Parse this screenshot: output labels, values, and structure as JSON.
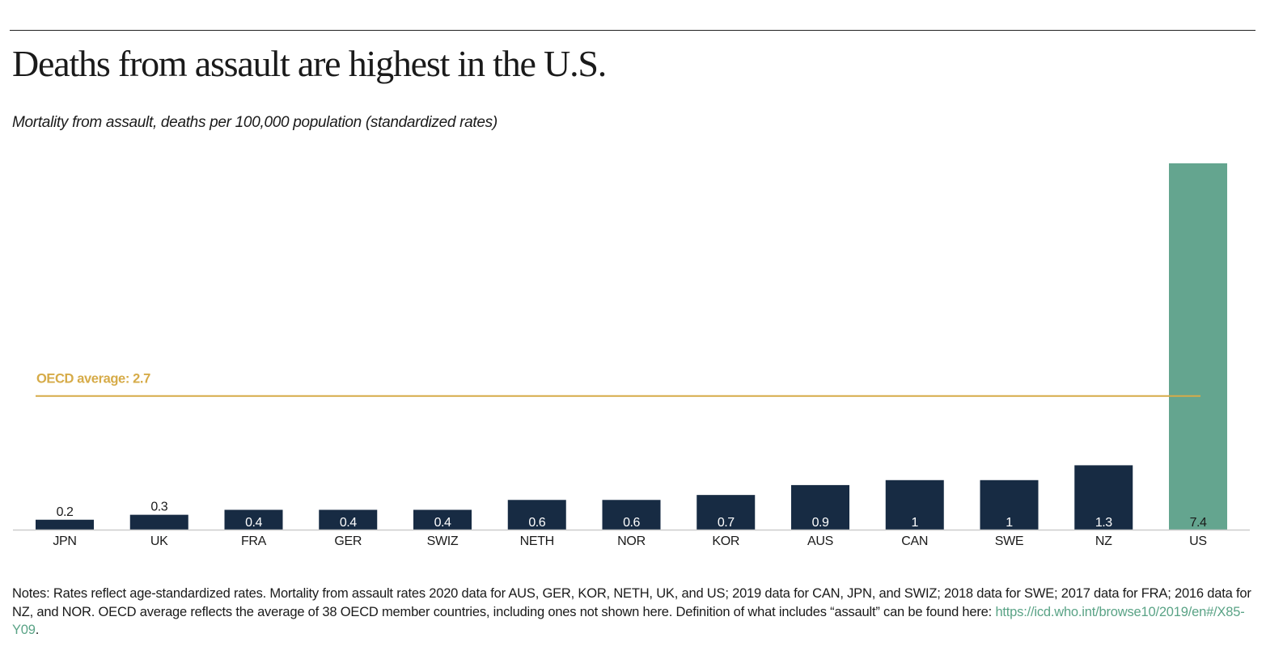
{
  "header": {
    "title": "Deaths from assault are highest in the U.S.",
    "subtitle": "Mortality from assault, deaths per 100,000 population (standardized rates)"
  },
  "notes": {
    "text": "Notes: Rates reflect age-standardized rates. Mortality from assault rates 2020 data for AUS, GER, KOR, NETH, UK, and US; 2019 data for CAN, JPN, and SWIZ; 2018 data for SWE; 2017 data for FRA; 2016 data for NZ, and NOR. OECD average reflects the average of 38 OECD member countries, including ones not shown here. Definition of what includes “assault” can be found here: ",
    "link_text": "https://icd.who.int/browse10/2019/en#/X85-Y09",
    "trailing": "."
  },
  "colors": {
    "bar_default": "#172b43",
    "bar_highlight": "#64a58f",
    "reference_line": "#d6ab48",
    "link": "#5aa386",
    "baseline": "#cccccc"
  },
  "chart_data": {
    "type": "bar",
    "title": "Deaths from assault are highest in the U.S.",
    "subtitle": "Mortality from assault, deaths per 100,000 population (standardized rates)",
    "xlabel": "",
    "ylabel": "",
    "categories": [
      "JPN",
      "UK",
      "FRA",
      "GER",
      "SWIZ",
      "NETH",
      "NOR",
      "KOR",
      "AUS",
      "CAN",
      "SWE",
      "NZ",
      "US"
    ],
    "values": [
      0.2,
      0.3,
      0.4,
      0.4,
      0.4,
      0.6,
      0.6,
      0.7,
      0.9,
      1,
      1,
      1.3,
      7.4
    ],
    "value_labels": [
      "0.2",
      "0.3",
      "0.4",
      "0.4",
      "0.4",
      "0.6",
      "0.6",
      "0.7",
      "0.9",
      "1",
      "1",
      "1.3",
      "7.4"
    ],
    "highlight": [
      "US"
    ],
    "ylim": [
      0,
      7.4
    ],
    "grid": false,
    "y_axis_shown": false,
    "reference_line": {
      "label": "OECD average: 2.7",
      "value": 2.7
    }
  }
}
